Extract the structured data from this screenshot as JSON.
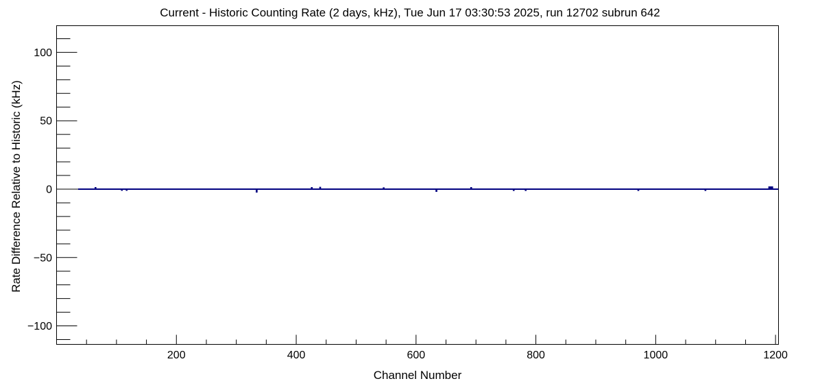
{
  "window": {
    "background": "#ffffff"
  },
  "chart_data": {
    "type": "line",
    "title": "Current - Historic Counting Rate (2 days, kHz), Tue Jun 17 03:30:53 2025, run 12702 subrun 642",
    "xlabel": "Channel Number",
    "ylabel": "Rate Difference Relative to Historic (kHz)",
    "xlim": [
      0,
      1205
    ],
    "ylim": [
      -113.5,
      119.5
    ],
    "grid": false,
    "legend": false,
    "x_major_ticks": [
      200,
      400,
      600,
      800,
      1000,
      1200
    ],
    "x_tick_labels": [
      "200",
      "400",
      "600",
      "800",
      "1000",
      "1200"
    ],
    "x_minor_step": 50,
    "y_major_ticks": [
      -100,
      -50,
      0,
      50,
      100
    ],
    "y_tick_labels": [
      "−100",
      "−50",
      "0",
      "50",
      "100"
    ],
    "y_minor_step": 10,
    "colors": {
      "frame": "#000000",
      "zero_line": "#000000",
      "series": "#000080",
      "text": "#000000"
    },
    "zero_line": {
      "value": 0,
      "x_start": 0,
      "x_end": 1205
    },
    "series": [
      {
        "name": "rate-difference-histogram",
        "color": "#000080",
        "baseline_value": 0,
        "x_start": 36,
        "x_end": 1205,
        "spikes": [
          {
            "channel": 65,
            "value": 1.0,
            "width_channels": 3
          },
          {
            "channel": 109,
            "value": -0.7,
            "width_channels": 3
          },
          {
            "channel": 117,
            "value": -0.7,
            "width_channels": 3
          },
          {
            "channel": 334,
            "value": -2.0,
            "width_channels": 3
          },
          {
            "channel": 426,
            "value": 1.0,
            "width_channels": 3
          },
          {
            "channel": 440,
            "value": 1.2,
            "width_channels": 3
          },
          {
            "channel": 546,
            "value": 0.8,
            "width_channels": 3
          },
          {
            "channel": 634,
            "value": -1.5,
            "width_channels": 3
          },
          {
            "channel": 692,
            "value": 1.0,
            "width_channels": 3
          },
          {
            "channel": 763,
            "value": -0.8,
            "width_channels": 3
          },
          {
            "channel": 783,
            "value": -0.8,
            "width_channels": 3
          },
          {
            "channel": 971,
            "value": -0.8,
            "width_channels": 3
          },
          {
            "channel": 1083,
            "value": -0.8,
            "width_channels": 3
          },
          {
            "channel": 1192,
            "value": 1.5,
            "width_channels": 8
          }
        ]
      }
    ]
  }
}
